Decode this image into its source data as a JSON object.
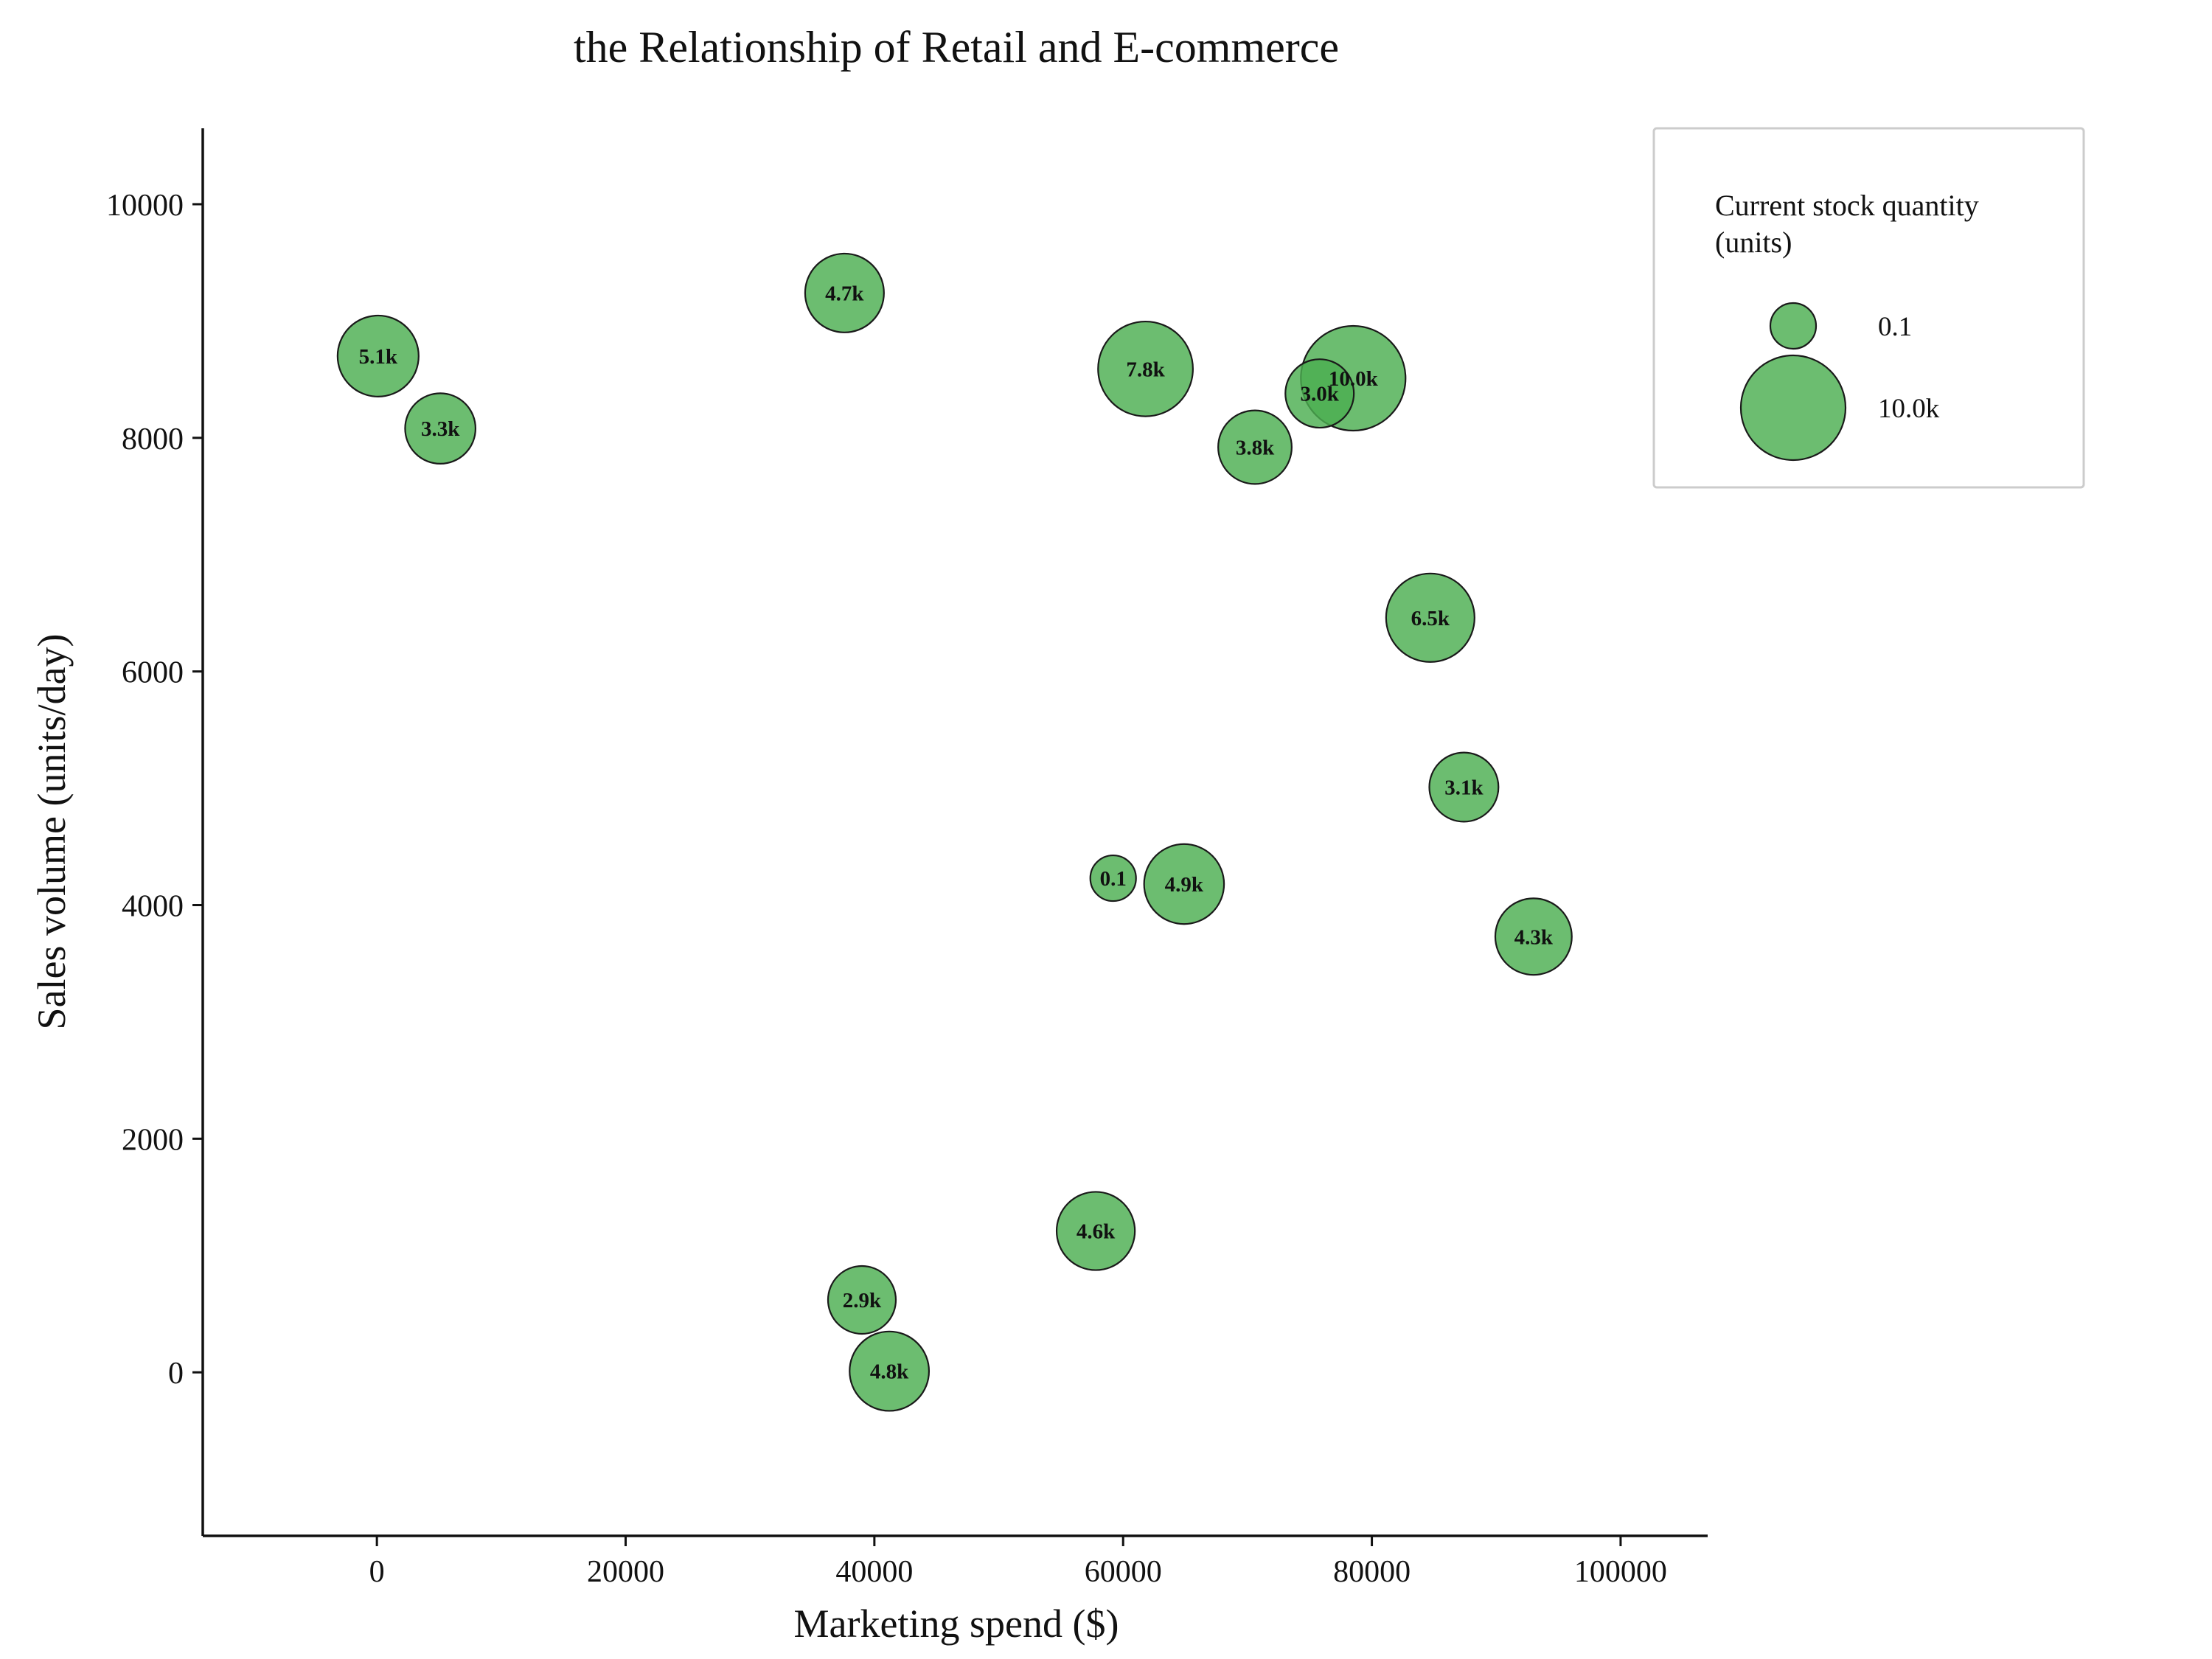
{
  "chart_data": {
    "type": "scatter",
    "title": "the Relationship of Retail and E-commerce",
    "xlabel": "Marketing spend ($)",
    "ylabel": "Sales volume (units/day)",
    "xlim": [
      -14000,
      107000
    ],
    "ylim": [
      -1400,
      10650
    ],
    "xticks": [
      0,
      20000,
      40000,
      60000,
      80000,
      100000
    ],
    "yticks": [
      0,
      2000,
      4000,
      6000,
      8000,
      10000
    ],
    "grid": false,
    "bubble_color": "#4CAF50",
    "bubble_edge_color": "#1a1a1a",
    "points": [
      {
        "x": 100,
        "y": 8700,
        "size": 5100,
        "label": "5.1k"
      },
      {
        "x": 5100,
        "y": 8080,
        "size": 3300,
        "label": "3.3k"
      },
      {
        "x": 37600,
        "y": 9240,
        "size": 4700,
        "label": "4.7k"
      },
      {
        "x": 61800,
        "y": 8590,
        "size": 7800,
        "label": "7.8k"
      },
      {
        "x": 78500,
        "y": 8510,
        "size": 10000,
        "label": "10.0k"
      },
      {
        "x": 75800,
        "y": 8380,
        "size": 3000,
        "label": "3.0k"
      },
      {
        "x": 70600,
        "y": 7920,
        "size": 3800,
        "label": "3.8k"
      },
      {
        "x": 84700,
        "y": 6460,
        "size": 6500,
        "label": "6.5k"
      },
      {
        "x": 87400,
        "y": 5010,
        "size": 3100,
        "label": "3.1k"
      },
      {
        "x": 59200,
        "y": 4230,
        "size": 100,
        "label": "0.1"
      },
      {
        "x": 64900,
        "y": 4180,
        "size": 4900,
        "label": "4.9k"
      },
      {
        "x": 93000,
        "y": 3730,
        "size": 4300,
        "label": "4.3k"
      },
      {
        "x": 57800,
        "y": 1210,
        "size": 4600,
        "label": "4.6k"
      },
      {
        "x": 39000,
        "y": 620,
        "size": 2900,
        "label": "2.9k"
      },
      {
        "x": 41200,
        "y": 10,
        "size": 4800,
        "label": "4.8k"
      }
    ],
    "legend": {
      "title_line1": "Current stock quantity",
      "title_line2": "(units)",
      "position": "top-right",
      "entries": [
        {
          "size": 100,
          "label": "0.1"
        },
        {
          "size": 10000,
          "label": "10.0k"
        }
      ]
    }
  }
}
